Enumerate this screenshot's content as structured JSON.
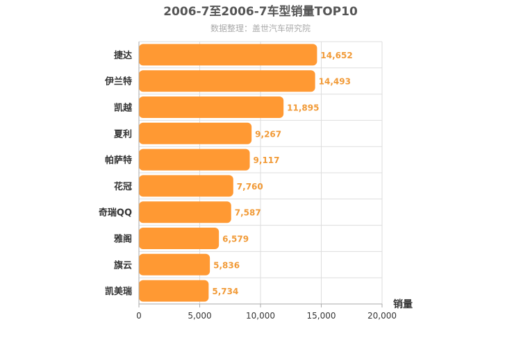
{
  "chart_data": {
    "type": "bar",
    "orientation": "horizontal",
    "title": "2006-7至2006-7车型销量TOP10",
    "subtitle": "数据整理：盖世汽车研究院",
    "categories": [
      "捷达",
      "伊兰特",
      "凯越",
      "夏利",
      "帕萨特",
      "花冠",
      "奇瑞QQ",
      "雅阁",
      "旗云",
      "凯美瑞"
    ],
    "values": [
      14652,
      14493,
      11895,
      9267,
      9117,
      7760,
      7587,
      6579,
      5836,
      5734
    ],
    "value_labels": [
      "14,652",
      "14,493",
      "11,895",
      "9,267",
      "9,117",
      "7,760",
      "7,587",
      "6,579",
      "5,836",
      "5,734"
    ],
    "xlabel": "销量",
    "ylabel": "",
    "xlim": [
      0,
      20000
    ],
    "x_ticks": [
      0,
      5000,
      10000,
      15000,
      20000
    ],
    "x_tick_labels": [
      "0",
      "5,000",
      "10,000",
      "15,000",
      "20,000"
    ],
    "bar_color": "#ff9933",
    "label_color": "#f19a37",
    "grid": true,
    "legend": "none"
  }
}
